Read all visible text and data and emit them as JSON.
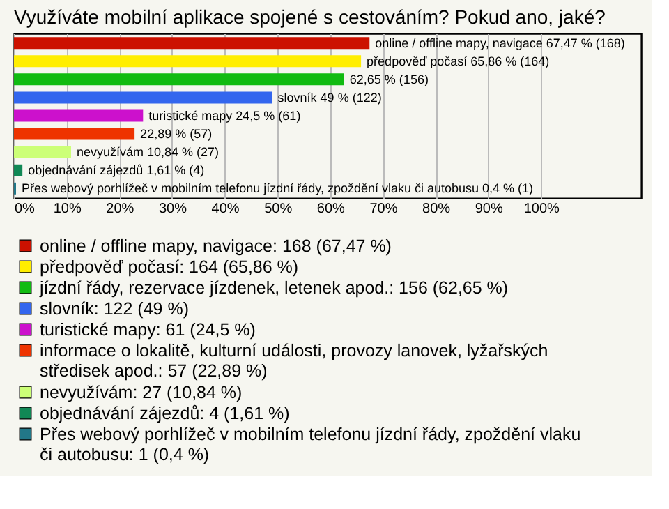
{
  "chart_data": {
    "type": "bar",
    "orientation": "horizontal",
    "stacked": true,
    "title": "Využíváte mobilní aplikace spojené s cestováním? Pokud ano, jaké?",
    "categories": [
      null,
      null,
      null,
      null,
      null,
      null,
      null,
      null,
      null
    ],
    "series": [
      {
        "name": "online / offline mapy, navigace: 168 (67,47 %)",
        "color": "#cc1100",
        "values": [
          67.47,
          null,
          null,
          null,
          null,
          null,
          null,
          null,
          null
        ],
        "value_labels": [
          "online / offline mapy, navigace 67,47 % (168)",
          null,
          null,
          null,
          null,
          null,
          null,
          null,
          null
        ]
      },
      {
        "name": "předpověď počasí: 164 (65,86 %)",
        "color": "#ffee00",
        "values": [
          null,
          65.86,
          null,
          null,
          null,
          null,
          null,
          null,
          null
        ],
        "value_labels": [
          null,
          "předpověď počasí 65,86 % (164)",
          null,
          null,
          null,
          null,
          null,
          null,
          null
        ]
      },
      {
        "name": "jízdní řády, rezervace jízdenek, letenek apod.: 156 (62,65 %)",
        "color": "#11bb11",
        "values": [
          null,
          null,
          62.65,
          null,
          null,
          null,
          null,
          null,
          null
        ],
        "value_labels": [
          null,
          null,
          "62,65 % (156)",
          null,
          null,
          null,
          null,
          null,
          null
        ]
      },
      {
        "name": "slovník: 122 (49 %)",
        "color": "#3366ee",
        "values": [
          null,
          null,
          null,
          49,
          null,
          null,
          null,
          null,
          null
        ],
        "value_labels": [
          null,
          null,
          null,
          "slovník 49 % (122)",
          null,
          null,
          null,
          null,
          null
        ]
      },
      {
        "name": "turistické mapy: 61 (24,5 %)",
        "color": "#cc11cc",
        "values": [
          null,
          null,
          null,
          null,
          24.5,
          null,
          null,
          null,
          null
        ],
        "value_labels": [
          null,
          null,
          null,
          null,
          "turistické mapy 24,5 % (61)",
          null,
          null,
          null,
          null
        ]
      },
      {
        "name": "informace o lokalitě, kulturní události, provozy lanovek, lyžařských středisek apod.: 57 (22,89 %)",
        "color": "#ee3300",
        "values": [
          null,
          null,
          null,
          null,
          null,
          22.89,
          null,
          null,
          null
        ],
        "value_labels": [
          null,
          null,
          null,
          null,
          null,
          "22,89 % (57)",
          null,
          null,
          null
        ]
      },
      {
        "name": "nevyužívám: 27 (10,84 %)",
        "color": "#ccff77",
        "values": [
          null,
          null,
          null,
          null,
          null,
          null,
          10.84,
          null,
          null
        ],
        "value_labels": [
          null,
          null,
          null,
          null,
          null,
          null,
          "nevyužívám 10,84 % (27)",
          null,
          null
        ]
      },
      {
        "name": "objednávání zájezdů: 4 (1,61 %)",
        "color": "#118855",
        "values": [
          null,
          null,
          null,
          null,
          null,
          null,
          null,
          1.61,
          null
        ],
        "value_labels": [
          null,
          null,
          null,
          null,
          null,
          null,
          null,
          "objednávání zájezdů 1,61 % (4)",
          null
        ]
      },
      {
        "name": "Přes webový porhlížeč v mobilním telefonu jízdní řády, zpoždění vlaku či autobusu: 1 (0,4 %)",
        "color": "#227788",
        "values": [
          null,
          null,
          null,
          null,
          null,
          null,
          null,
          null,
          0.4
        ],
        "value_labels": [
          null,
          null,
          null,
          null,
          null,
          null,
          null,
          null,
          "Přes webový porhlížeč v mobilním telefonu jízdní řády, zpoždění vlaku či autobusu 0,4 % (1)"
        ]
      }
    ],
    "xlim": [
      0,
      119
    ],
    "xticks": [
      {
        "value": 0,
        "label": "0%"
      },
      {
        "value": 10,
        "label": "10%"
      },
      {
        "value": 20,
        "label": "20%"
      },
      {
        "value": 30,
        "label": "30%"
      },
      {
        "value": 40,
        "label": "40%"
      },
      {
        "value": 50,
        "label": "50%"
      },
      {
        "value": 60,
        "label": "60%"
      },
      {
        "value": 70,
        "label": "70%"
      },
      {
        "value": 80,
        "label": "80%"
      },
      {
        "value": 90,
        "label": "90%"
      },
      {
        "value": 100,
        "label": "100%"
      }
    ],
    "grid": "x",
    "legend": "bottom"
  }
}
